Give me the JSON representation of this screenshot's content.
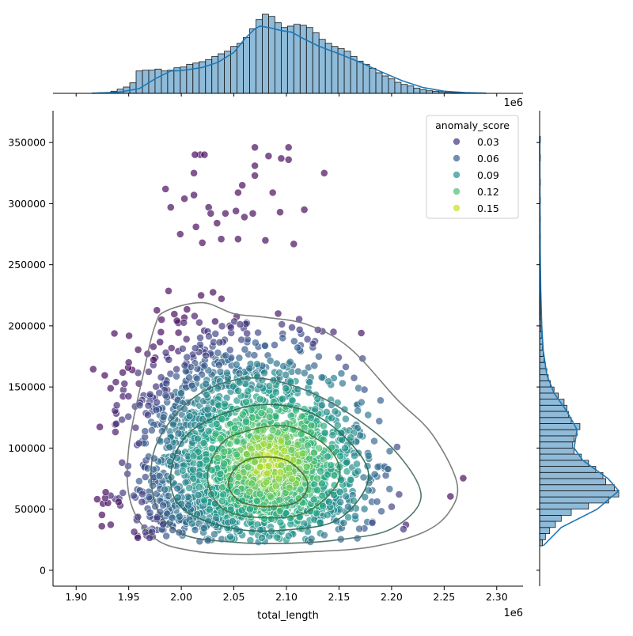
{
  "chart_data": {
    "type": "scatter",
    "xlabel": "total_length",
    "ylabel": "",
    "x_offset_label": "1e6",
    "xlim": [
      1.878,
      2.325
    ],
    "ylim": [
      -13000,
      376000
    ],
    "x_ticks": [
      {
        "value": 1.9,
        "label": "1.90"
      },
      {
        "value": 1.95,
        "label": "1.95"
      },
      {
        "value": 2.0,
        "label": "2.00"
      },
      {
        "value": 2.05,
        "label": "2.05"
      },
      {
        "value": 2.1,
        "label": "2.10"
      },
      {
        "value": 2.15,
        "label": "2.15"
      },
      {
        "value": 2.2,
        "label": "2.20"
      },
      {
        "value": 2.25,
        "label": "2.25"
      },
      {
        "value": 2.3,
        "label": "2.30"
      }
    ],
    "y_ticks": [
      {
        "value": 0,
        "label": "0"
      },
      {
        "value": 50000,
        "label": "50000"
      },
      {
        "value": 100000,
        "label": "100000"
      },
      {
        "value": 150000,
        "label": "150000"
      },
      {
        "value": 200000,
        "label": "200000"
      },
      {
        "value": 250000,
        "label": "250000"
      },
      {
        "value": 300000,
        "label": "300000"
      },
      {
        "value": 350000,
        "label": "350000"
      }
    ],
    "legend": {
      "title": "anomaly_score",
      "placement": "top-right",
      "entries": [
        {
          "label": "0.03",
          "color": "#46327e"
        },
        {
          "label": "0.06",
          "color": "#365c8d"
        },
        {
          "label": "0.09",
          "color": "#21918c"
        },
        {
          "label": "0.12",
          "color": "#4ac16d"
        },
        {
          "label": "0.15",
          "color": "#c8e020"
        }
      ]
    },
    "colormap": [
      "#440154",
      "#46327e",
      "#365c8d",
      "#277f8e",
      "#1fa187",
      "#4ac16d",
      "#a0da39",
      "#fde725"
    ],
    "hist_color": "#1f77b4",
    "scatter_center": {
      "x": 2.085,
      "y": 90000
    },
    "outlier_points": [
      [
        2.018,
        340000
      ],
      [
        2.022,
        340000
      ],
      [
        2.013,
        340000
      ],
      [
        2.07,
        346000
      ],
      [
        2.083,
        339000
      ],
      [
        2.102,
        346000
      ],
      [
        2.095,
        337000
      ],
      [
        2.102,
        336000
      ],
      [
        2.07,
        331000
      ],
      [
        2.012,
        325000
      ],
      [
        2.136,
        325000
      ],
      [
        2.07,
        323000
      ],
      [
        1.985,
        312000
      ],
      [
        2.058,
        315000
      ],
      [
        2.087,
        309000
      ],
      [
        2.054,
        309000
      ],
      [
        2.003,
        304000
      ],
      [
        2.012,
        307000
      ],
      [
        1.99,
        297000
      ],
      [
        2.026,
        297000
      ],
      [
        2.052,
        294000
      ],
      [
        2.028,
        292000
      ],
      [
        2.042,
        292000
      ],
      [
        2.068,
        292000
      ],
      [
        2.094,
        293000
      ],
      [
        2.117,
        295000
      ],
      [
        2.06,
        289000
      ],
      [
        2.034,
        284000
      ],
      [
        2.014,
        281000
      ],
      [
        1.999,
        275000
      ],
      [
        2.038,
        271000
      ],
      [
        2.054,
        271000
      ],
      [
        2.08,
        270000
      ],
      [
        2.107,
        267000
      ],
      [
        2.02,
        268000
      ]
    ],
    "kde_contours": [
      {
        "level": 1,
        "color": "#787878",
        "points": [
          [
            1.985,
            212000
          ],
          [
            2.02,
            219000
          ],
          [
            2.05,
            210000
          ],
          [
            2.08,
            207000
          ],
          [
            2.12,
            201000
          ],
          [
            2.16,
            182000
          ],
          [
            2.205,
            140000
          ],
          [
            2.238,
            112000
          ],
          [
            2.262,
            72000
          ],
          [
            2.255,
            48000
          ],
          [
            2.23,
            31000
          ],
          [
            2.18,
            19000
          ],
          [
            2.12,
            15000
          ],
          [
            2.06,
            13000
          ],
          [
            2.01,
            16000
          ],
          [
            1.975,
            26000
          ],
          [
            1.952,
            55000
          ],
          [
            1.95,
            100000
          ],
          [
            1.965,
            165000
          ],
          [
            1.975,
            200000
          ]
        ]
      },
      {
        "level": 2,
        "color": "#4a6f68",
        "points": [
          [
            2.01,
            140000
          ],
          [
            2.06,
            157000
          ],
          [
            2.11,
            150000
          ],
          [
            2.16,
            128000
          ],
          [
            2.205,
            96000
          ],
          [
            2.228,
            60000
          ],
          [
            2.2,
            34000
          ],
          [
            2.15,
            25000
          ],
          [
            2.1,
            22000
          ],
          [
            2.05,
            23000
          ],
          [
            2.0,
            30000
          ],
          [
            1.975,
            55000
          ],
          [
            1.975,
            100000
          ]
        ]
      },
      {
        "level": 3,
        "color": "#2d6c58",
        "points": [
          [
            2.02,
            120000
          ],
          [
            2.07,
            135000
          ],
          [
            2.12,
            130000
          ],
          [
            2.16,
            105000
          ],
          [
            2.178,
            75000
          ],
          [
            2.15,
            42000
          ],
          [
            2.1,
            33000
          ],
          [
            2.05,
            34000
          ],
          [
            2.005,
            48000
          ],
          [
            1.99,
            70000
          ],
          [
            1.997,
            100000
          ]
        ]
      },
      {
        "level": 4,
        "color": "#3f7a3c",
        "points": [
          [
            2.055,
            112000
          ],
          [
            2.1,
            118000
          ],
          [
            2.14,
            100000
          ],
          [
            2.15,
            74000
          ],
          [
            2.12,
            48000
          ],
          [
            2.08,
            43000
          ],
          [
            2.04,
            50000
          ],
          [
            2.025,
            75000
          ],
          [
            2.035,
            100000
          ]
        ]
      },
      {
        "level": 5,
        "color": "#506a2a",
        "points": [
          [
            2.07,
            92000
          ],
          [
            2.1,
            90000
          ],
          [
            2.12,
            72000
          ],
          [
            2.11,
            56000
          ],
          [
            2.08,
            52000
          ],
          [
            2.055,
            57000
          ],
          [
            2.045,
            70000
          ],
          [
            2.052,
            84000
          ]
        ]
      }
    ],
    "x_marginal_hist": {
      "bin_start": 1.915,
      "bin_width": 0.006,
      "counts": [
        1,
        2,
        3,
        8,
        16,
        24,
        40,
        85,
        88,
        88,
        92,
        85,
        88,
        97,
        100,
        110,
        115,
        120,
        128,
        140,
        150,
        160,
        178,
        190,
        212,
        245,
        280,
        300,
        292,
        268,
        250,
        255,
        262,
        258,
        250,
        230,
        205,
        190,
        178,
        170,
        160,
        140,
        122,
        110,
        95,
        78,
        66,
        55,
        42,
        34,
        28,
        20,
        14,
        10,
        8,
        6,
        4,
        2,
        2,
        1,
        1
      ],
      "kde": [
        [
          1.915,
          0.5
        ],
        [
          1.94,
          4
        ],
        [
          1.96,
          18
        ],
        [
          1.975,
          55
        ],
        [
          1.99,
          85
        ],
        [
          2.0,
          86
        ],
        [
          2.02,
          98
        ],
        [
          2.035,
          118
        ],
        [
          2.05,
          155
        ],
        [
          2.06,
          205
        ],
        [
          2.07,
          245
        ],
        [
          2.075,
          255
        ],
        [
          2.085,
          248
        ],
        [
          2.095,
          238
        ],
        [
          2.105,
          232
        ],
        [
          2.115,
          210
        ],
        [
          2.13,
          180
        ],
        [
          2.15,
          150
        ],
        [
          2.17,
          118
        ],
        [
          2.19,
          82
        ],
        [
          2.21,
          48
        ],
        [
          2.23,
          22
        ],
        [
          2.25,
          8
        ],
        [
          2.27,
          3
        ],
        [
          2.29,
          0.5
        ]
      ]
    },
    "y_marginal_hist": {
      "bin_start": 20000,
      "bin_width": 5000,
      "counts": [
        4,
        8,
        14,
        22,
        30,
        44,
        68,
        96,
        110,
        104,
        92,
        88,
        78,
        68,
        58,
        48,
        46,
        48,
        52,
        56,
        44,
        40,
        38,
        34,
        26,
        20,
        15,
        12,
        10,
        8,
        6,
        5,
        4,
        4,
        3,
        2,
        2,
        1,
        1,
        1,
        1,
        1,
        1,
        1,
        0,
        1,
        0,
        1,
        0,
        0,
        1,
        0,
        0,
        1,
        0,
        0,
        1,
        0,
        0,
        1,
        0,
        0,
        0,
        1,
        0,
        0,
        1
      ],
      "kde": [
        [
          20000,
          5
        ],
        [
          35000,
          30
        ],
        [
          50000,
          80
        ],
        [
          65000,
          110
        ],
        [
          75000,
          95
        ],
        [
          90000,
          60
        ],
        [
          100000,
          48
        ],
        [
          115000,
          52
        ],
        [
          130000,
          38
        ],
        [
          145000,
          20
        ],
        [
          160000,
          10
        ],
        [
          180000,
          5
        ],
        [
          200000,
          3
        ],
        [
          230000,
          1.5
        ],
        [
          260000,
          0.8
        ],
        [
          300000,
          0.4
        ],
        [
          340000,
          0.2
        ],
        [
          355000,
          0.1
        ]
      ]
    }
  }
}
